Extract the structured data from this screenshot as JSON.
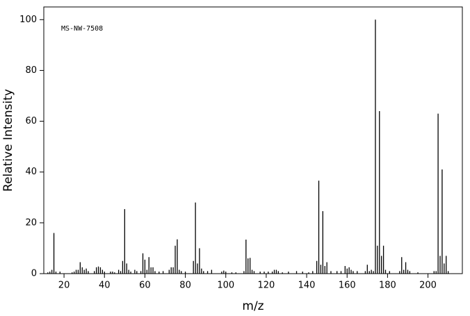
{
  "chart_data": {
    "type": "bar",
    "annotation": "MS-NW-7508",
    "x_label": "m/z",
    "y_label": "Relative Intensity",
    "xlim": [
      10,
      217
    ],
    "ylim": [
      0,
      105
    ],
    "xticks": [
      20,
      40,
      60,
      80,
      100,
      120,
      140,
      160,
      180,
      200
    ],
    "yticks": [
      0,
      20,
      40,
      60,
      80,
      100
    ],
    "color": "#000000",
    "series": [
      {
        "x": [
          12,
          13,
          14,
          15,
          16,
          18,
          24,
          25,
          26,
          27,
          28,
          29,
          30,
          31,
          32,
          35,
          36,
          37,
          38,
          39,
          40,
          43,
          44,
          45,
          47,
          48,
          49,
          50,
          51,
          52,
          53,
          55,
          56,
          58,
          59,
          60,
          61,
          62,
          63,
          64,
          65,
          67,
          69,
          72,
          73,
          74,
          75,
          76,
          77,
          78,
          80,
          84,
          85,
          86,
          87,
          88,
          89,
          91,
          93,
          98,
          99,
          100,
          103,
          105,
          109,
          110,
          111,
          112,
          113,
          114,
          117,
          119,
          121,
          123,
          124,
          125,
          126,
          128,
          131,
          135,
          138,
          141,
          143,
          145,
          146,
          147,
          148,
          149,
          150,
          152,
          155,
          157,
          159,
          160,
          161,
          162,
          163,
          165,
          169,
          170,
          171,
          172,
          173,
          174,
          175,
          176,
          177,
          178,
          179,
          181,
          186,
          187,
          188,
          189,
          190,
          191,
          195,
          203,
          204,
          205,
          206,
          207,
          208,
          209,
          210
        ],
        "values": [
          0.5,
          0.8,
          1.5,
          16,
          0.8,
          0.8,
          0.5,
          0.8,
          1.5,
          1.5,
          4.5,
          2.5,
          1.5,
          2,
          1,
          1,
          2.5,
          2.8,
          2.5,
          1.5,
          0.8,
          0.8,
          0.8,
          0.5,
          1.5,
          1,
          5,
          25.4,
          4,
          1.5,
          0.8,
          1.5,
          1,
          1,
          8,
          5.5,
          1.5,
          6.5,
          2.5,
          2.5,
          1,
          0.8,
          1,
          1.5,
          2.5,
          2.5,
          11,
          13.5,
          1.5,
          1,
          0.8,
          5,
          28,
          4,
          10,
          2,
          1,
          1,
          1.5,
          0.8,
          1.2,
          0.8,
          0.5,
          0.5,
          1,
          13.4,
          6,
          6.2,
          1.5,
          1,
          0.8,
          0.8,
          0.8,
          0.8,
          1.5,
          1.5,
          1,
          0.5,
          0.8,
          1,
          0.8,
          0.5,
          1,
          5,
          36.6,
          3.5,
          24.6,
          3,
          4.5,
          1,
          1,
          1,
          3,
          2,
          2.5,
          1.5,
          1,
          1,
          1,
          3.5,
          1,
          1.5,
          1,
          100,
          11,
          64,
          7,
          11,
          1.5,
          1,
          1,
          6.5,
          1.5,
          4.5,
          1.5,
          1,
          0.5,
          1,
          1,
          63,
          7,
          41,
          4,
          7,
          1
        ]
      }
    ]
  }
}
